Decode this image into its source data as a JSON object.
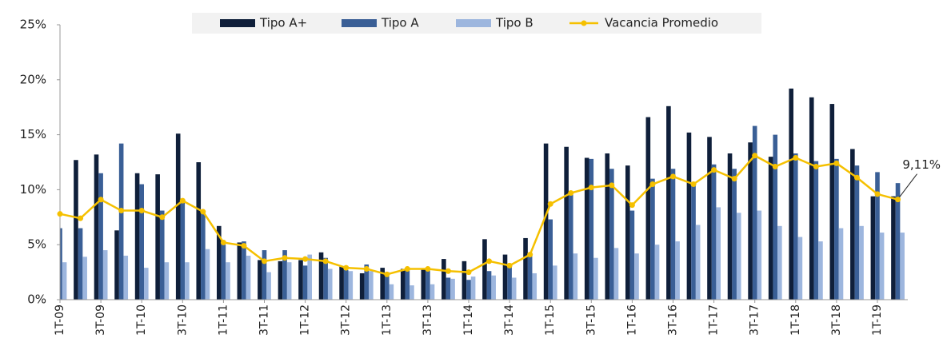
{
  "chart_data": {
    "type": "bar",
    "categories": [
      "1T-09",
      null,
      "3T-09",
      null,
      "1T-10",
      null,
      "3T-10",
      null,
      "1T-11",
      null,
      "3T-11",
      null,
      "1T-12",
      null,
      "3T-12",
      null,
      "1T-13",
      null,
      "3T-13",
      null,
      "1T-14",
      null,
      "3T-14",
      null,
      "1T-15",
      null,
      "3T-15",
      null,
      "1T-16",
      null,
      "3T-16",
      null,
      "1T-17",
      null,
      "3T-17",
      null,
      "1T-18",
      null,
      "3T-18",
      null,
      "1T-19",
      null
    ],
    "series": [
      {
        "name": "Tipo A+",
        "color": "#0f1f3a",
        "values": [
          null,
          12.7,
          13.2,
          6.3,
          11.5,
          11.4,
          15.1,
          12.5,
          6.7,
          5.2,
          3.6,
          3.5,
          3.6,
          4.3,
          3.0,
          2.4,
          2.9,
          2.8,
          2.8,
          3.7,
          3.5,
          5.5,
          4.1,
          5.6,
          14.2,
          13.9,
          12.9,
          13.3,
          12.2,
          16.6,
          17.6,
          15.2,
          14.8,
          13.3,
          14.3,
          13.0,
          19.2,
          18.4,
          17.8,
          13.7,
          9.4,
          9.4
        ]
      },
      {
        "name": "Tipo A",
        "color": "#3a5f96",
        "values": [
          6.5,
          6.5,
          11.5,
          14.2,
          10.5,
          8.1,
          9.0,
          8.0,
          5.0,
          5.3,
          4.5,
          4.5,
          3.1,
          3.8,
          2.7,
          3.2,
          2.5,
          2.8,
          2.7,
          2.0,
          1.8,
          2.6,
          3.0,
          4.2,
          7.3,
          9.7,
          12.8,
          11.9,
          8.1,
          11.0,
          11.9,
          10.5,
          12.3,
          11.9,
          15.8,
          15.0,
          13.3,
          12.6,
          12.8,
          12.2,
          11.6,
          10.6
        ]
      },
      {
        "name": "Tipo B",
        "color": "#9db6de",
        "values": [
          3.4,
          3.9,
          4.5,
          4.0,
          2.9,
          3.4,
          3.4,
          4.6,
          3.4,
          4.0,
          2.5,
          3.4,
          4.1,
          2.8,
          2.6,
          2.6,
          1.4,
          1.3,
          1.4,
          1.9,
          2.1,
          2.2,
          2.0,
          2.4,
          3.1,
          4.2,
          3.8,
          4.7,
          4.2,
          5.0,
          5.3,
          6.8,
          8.4,
          7.9,
          8.1,
          6.7,
          5.7,
          5.3,
          6.5,
          6.7,
          6.1,
          6.1
        ]
      },
      {
        "name": "Vacancia Promedio",
        "type": "line",
        "color": "#f5c000",
        "values": [
          7.8,
          7.4,
          9.1,
          8.1,
          8.1,
          7.5,
          9.0,
          8.0,
          5.2,
          4.9,
          3.5,
          3.8,
          3.7,
          3.5,
          2.9,
          2.8,
          2.3,
          2.8,
          2.8,
          2.6,
          2.5,
          3.5,
          3.1,
          4.1,
          8.7,
          9.7,
          10.2,
          10.4,
          8.6,
          10.5,
          11.2,
          10.5,
          11.8,
          11.0,
          13.1,
          12.1,
          12.9,
          12.1,
          12.4,
          11.1,
          9.6,
          9.11
        ],
        "value_labels": [
          null,
          null,
          null,
          null,
          null,
          null,
          null,
          null,
          null,
          null,
          null,
          null,
          null,
          null,
          null,
          null,
          null,
          null,
          null,
          null,
          null,
          null,
          null,
          null,
          null,
          null,
          null,
          null,
          null,
          null,
          null,
          null,
          null,
          null,
          null,
          null,
          null,
          null,
          null,
          null,
          null,
          "9,11%"
        ]
      }
    ],
    "ylim": [
      0,
      25
    ],
    "yticks": [
      {
        "value": 0,
        "label": "0%"
      },
      {
        "value": 5,
        "label": "5%"
      },
      {
        "value": 10,
        "label": "10%"
      },
      {
        "value": 15,
        "label": "15%"
      },
      {
        "value": 20,
        "label": "20%"
      },
      {
        "value": 25,
        "label": "25%"
      }
    ],
    "grid": false,
    "legend": "top"
  }
}
